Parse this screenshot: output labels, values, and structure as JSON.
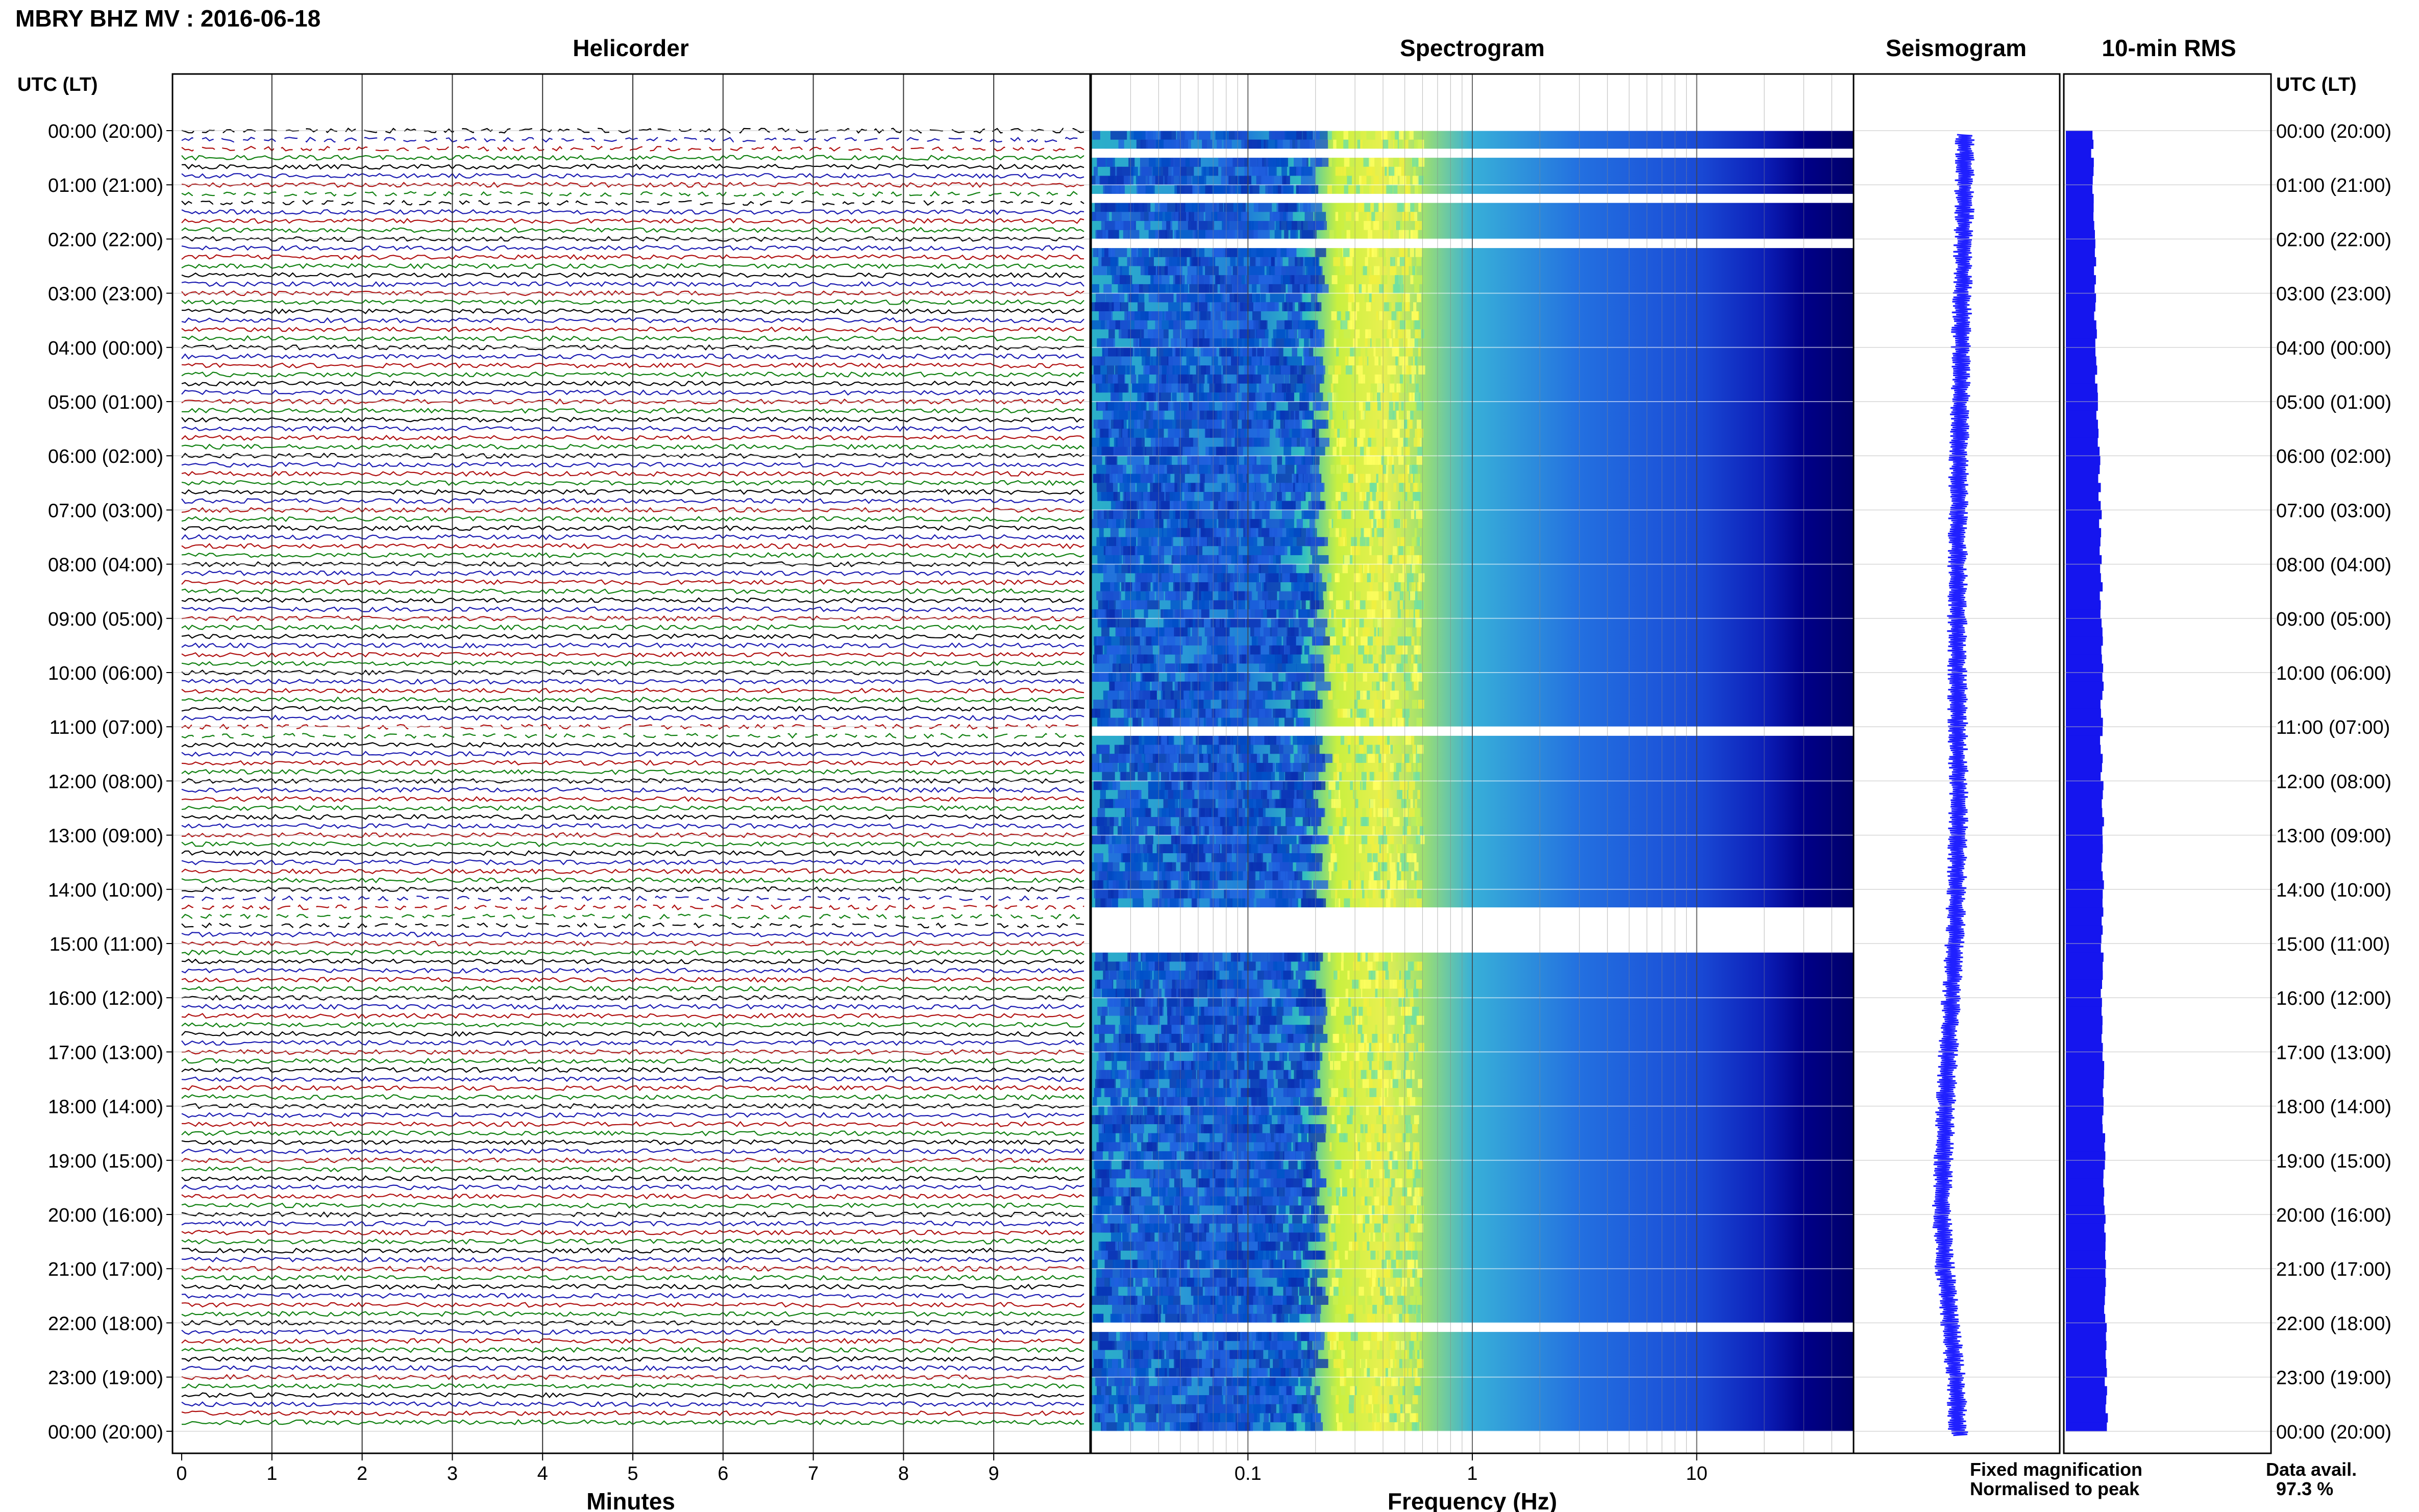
{
  "header": {
    "station_title": "MBRY BHZ MV : 2016-06-18",
    "utc_label_left": "UTC (LT)",
    "utc_label_right": "UTC (LT)"
  },
  "panels": {
    "helicorder": "Helicorder",
    "spectrogram": "Spectrogram",
    "seismogram": "Seismogram",
    "rms": "10-min RMS"
  },
  "axes": {
    "helicorder_xlabel": "Minutes",
    "spectrogram_xlabel": "Frequency (Hz)"
  },
  "legend": {
    "fixed": "Fixed magnification",
    "fixed_color": "#1010ff",
    "normalised": "Normalised to peak",
    "normalised_color": "#e01010"
  },
  "availability": {
    "label": "Data avail.",
    "value": "97.3 %"
  },
  "colors": {
    "trace_cycle": [
      "#000000",
      "#1a1ab0",
      "#b01010",
      "#108010"
    ],
    "spectrogram_low": "#00006a",
    "spectrogram_high": "#ffff40",
    "seismogram": "#2020ff",
    "rms": "#1515ee"
  },
  "chart_data": [
    {
      "type": "line",
      "name": "helicorder",
      "xlabel": "Minutes",
      "xlim": [
        0,
        10
      ],
      "x_ticks": [
        "0",
        "1",
        "2",
        "3",
        "4",
        "5",
        "6",
        "7",
        "8",
        "9"
      ],
      "y_tick_labels": [
        "00:00 (20:00)",
        "01:00 (21:00)",
        "02:00 (22:00)",
        "03:00 (23:00)",
        "04:00 (00:00)",
        "05:00 (01:00)",
        "06:00 (02:00)",
        "07:00 (03:00)",
        "08:00 (04:00)",
        "09:00 (05:00)",
        "10:00 (06:00)",
        "11:00 (07:00)",
        "12:00 (08:00)",
        "13:00 (09:00)",
        "14:00 (10:00)",
        "15:00 (11:00)",
        "16:00 (12:00)",
        "17:00 (13:00)",
        "18:00 (14:00)",
        "19:00 (15:00)",
        "20:00 (16:00)",
        "21:00 (17:00)",
        "22:00 (18:00)",
        "23:00 (19:00)",
        "00:00 (20:00)"
      ],
      "rows_per_hour": 6,
      "gap_rows_utc": [
        "00:00",
        "00:10",
        "00:20",
        "01:10",
        "01:20",
        "11:00",
        "11:10",
        "14:10",
        "14:20",
        "14:30",
        "14:40"
      ]
    },
    {
      "type": "heatmap",
      "name": "spectrogram",
      "xlabel": "Frequency (Hz)",
      "x_scale": "log",
      "xlim": [
        0.02,
        50
      ],
      "x_ticks": [
        "0.1",
        "1",
        "10"
      ],
      "peak_band_hz": [
        0.25,
        0.6
      ],
      "missing_intervals_utc": [
        [
          "00:20",
          "00:30"
        ],
        [
          "01:10",
          "01:20"
        ],
        [
          "02:00",
          "02:10"
        ],
        [
          "11:00",
          "11:10"
        ],
        [
          "14:20",
          "15:10"
        ],
        [
          "22:00",
          "22:10"
        ]
      ]
    },
    {
      "type": "line",
      "name": "seismogram",
      "x_center_offsets": [
        0.28,
        0.26,
        0.23,
        0.18,
        0.14,
        0.1,
        0.07,
        0.04,
        0.03,
        0.02,
        0.02,
        0.04,
        0.06,
        0.04,
        0.0,
        -0.08,
        -0.18,
        -0.28,
        -0.36,
        -0.44,
        -0.48,
        -0.38,
        -0.2,
        -0.02,
        0.06
      ]
    },
    {
      "type": "bar",
      "name": "10-min RMS",
      "unit": "relative",
      "hourly_values": [
        0.53,
        0.56,
        0.58,
        0.6,
        0.6,
        0.64,
        0.68,
        0.7,
        0.72,
        0.72,
        0.74,
        0.72,
        0.74,
        0.76,
        0.74,
        0.74,
        0.74,
        0.76,
        0.76,
        0.78,
        0.78,
        0.8,
        0.8,
        0.82,
        0.84
      ]
    }
  ]
}
